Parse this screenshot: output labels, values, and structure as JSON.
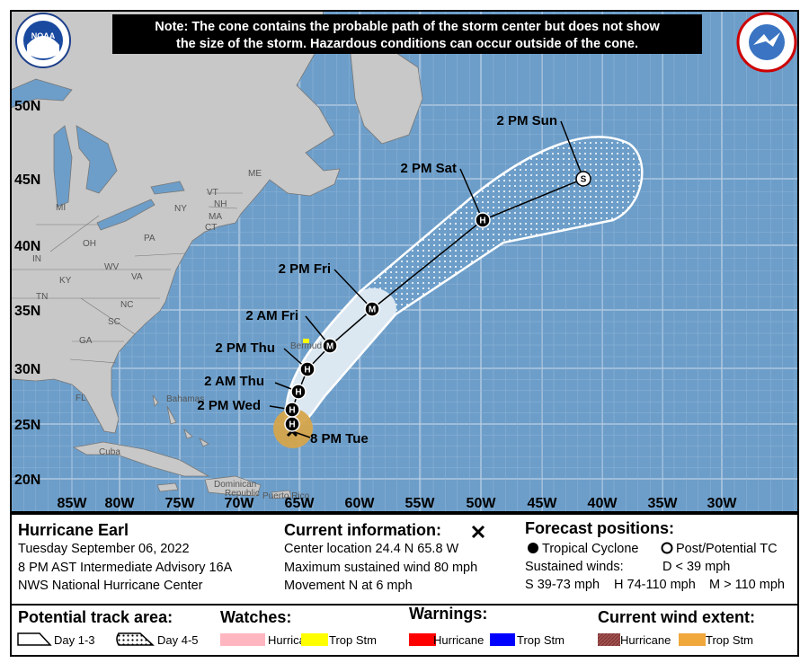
{
  "note": [
    "Note: The cone contains the probable path of the storm center but does not show",
    "the size of the storm. Hazardous conditions can occur outside of the cone."
  ],
  "logo": "NOAA",
  "map": {
    "longitude_labels": [
      "85W",
      "80W",
      "75W",
      "70W",
      "65W",
      "60W",
      "55W",
      "50W",
      "45W",
      "40W",
      "35W",
      "30W"
    ],
    "latitude_labels": [
      "50N",
      "45N",
      "40N",
      "35N",
      "30N",
      "25N",
      "20N"
    ],
    "state_labels": [
      "ME",
      "VT",
      "NH",
      "NY",
      "MA",
      "CT",
      "PA",
      "MI",
      "OH",
      "IN",
      "WV",
      "VA",
      "KY",
      "TN",
      "NC",
      "SC",
      "GA",
      "FL"
    ],
    "place_labels": [
      "Bermuda",
      "Bahamas",
      "Cuba",
      "Dominican",
      "Republic",
      "Puerto Rico"
    ],
    "forecast_points": [
      {
        "label": "8 PM Tue"
      },
      {
        "symbol": "H"
      },
      {
        "label": "2 PM Wed",
        "symbol": "H"
      },
      {
        "label": "2 AM Thu",
        "symbol": "H"
      },
      {
        "label": "2 PM Thu",
        "symbol": "H"
      },
      {
        "label": "2 AM Fri",
        "symbol": "M"
      },
      {
        "label": "2 PM Fri",
        "symbol": "M"
      },
      {
        "label": "2 PM Sat",
        "symbol": "H"
      },
      {
        "label": "2 PM Sun",
        "symbol": "S"
      }
    ]
  },
  "storm": {
    "name": "Hurricane Earl",
    "date": "Tuesday September 06, 2022",
    "advisory": "8 PM AST Intermediate Advisory 16A",
    "center": "NWS National Hurricane Center"
  },
  "current": {
    "title": "Current information:",
    "location": "Center location 24.4 N 65.8 W",
    "wind": "Maximum sustained wind 80 mph",
    "movement": "Movement N at 6 mph"
  },
  "forecast": {
    "title": "Forecast positions:",
    "tropical_cyclone": "Tropical Cyclone",
    "post_tc": "Post/Potential TC",
    "sustained_winds": "Sustained winds:",
    "d": "D < 39 mph",
    "s": "S 39-73 mph",
    "h": "H 74-110 mph",
    "m": "M > 110 mph"
  },
  "legend": {
    "track_area": {
      "title": "Potential track area:",
      "day13": "Day 1-3",
      "day45": "Day 4-5"
    },
    "watches": {
      "title": "Watches:",
      "hurricane": "Hurricane",
      "trop_stm": "Trop Stm"
    },
    "warnings": {
      "title": "Warnings:",
      "hurricane": "Hurricane",
      "trop_stm": "Trop Stm"
    },
    "wind_extent": {
      "title": "Current wind extent:",
      "hurricane": "Hurricane",
      "trop_stm": "Trop Stm"
    }
  }
}
